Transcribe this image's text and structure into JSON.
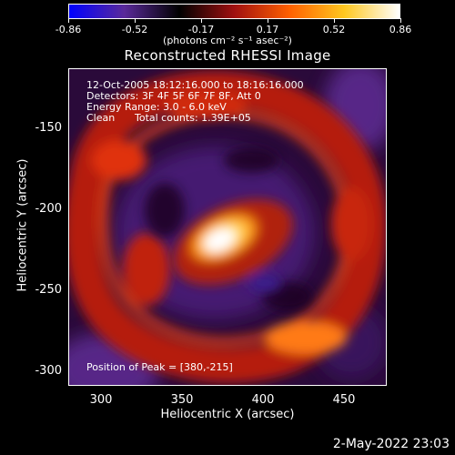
{
  "colorbar": {
    "ticks": [
      "-0.86",
      "-0.52",
      "-0.17",
      "0.17",
      "0.52",
      "0.86"
    ],
    "units": "(photons cm⁻² s⁻¹ asec⁻²)",
    "colors": [
      "#0000ff",
      "#5a2a9a",
      "#000000",
      "#a01010",
      "#ff6000",
      "#ffc820",
      "#ffffff"
    ]
  },
  "title": "Reconstructed RHESSI Image",
  "annotations": {
    "time": "12-Oct-2005 18:12:16.000 to 18:16:16.000",
    "detectors": "Detectors: 3F 4F 5F 6F 7F 8F, Att 0",
    "energy": "Energy Range: 3.0 - 6.0 keV",
    "clean": "Clean",
    "counts": "Total counts: 1.39E+05",
    "peak": "Position of Peak = [380,-215]"
  },
  "axes": {
    "xlabel": "Heliocentric X (arcsec)",
    "ylabel": "Heliocentric Y (arcsec)",
    "xticks": [
      "300",
      "350",
      "400",
      "450"
    ],
    "yticks": [
      "-150",
      "-200",
      "-250",
      "-300"
    ]
  },
  "footer": {
    "date": "2-May-2022 23:03"
  }
}
